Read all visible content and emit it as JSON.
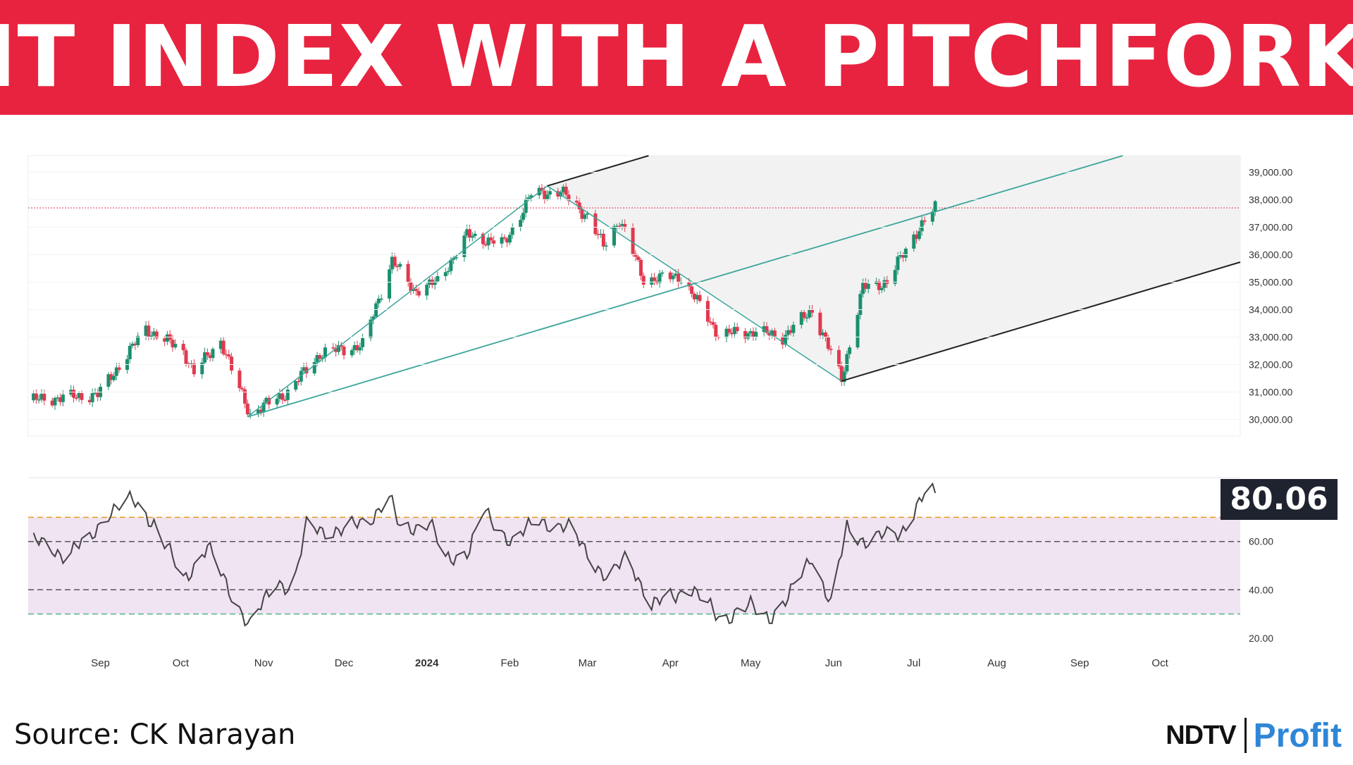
{
  "header": {
    "title": "IT INDEX WITH A PITCHFORK"
  },
  "footer": {
    "source": "Source: CK Narayan"
  },
  "logo": {
    "brand": "NDTV",
    "product": "Profit"
  },
  "colors": {
    "banner": "#e8233f",
    "up": "#1b8f6e",
    "down": "#e0394f",
    "median_line": "#3aa59a",
    "tine_line": "#222222",
    "rsi_line": "#444444",
    "rsi_band": "#f0e3f2",
    "rsi_upper_level": "#e89b19",
    "rsi_lower_level": "#56b58a"
  },
  "chart_data": [
    {
      "type": "candlestick",
      "title": "",
      "x_ticks": [
        "Sep",
        "Oct",
        "Nov",
        "Dec",
        "2024",
        "Feb",
        "Mar",
        "Apr",
        "May",
        "Jun",
        "Jul",
        "Aug",
        "Sep",
        "Oct"
      ],
      "x_range": [
        "2023-08-05",
        "2024-10-31"
      ],
      "y_ticks": [
        "39,000.00",
        "38,000.00",
        "37,000.00",
        "36,000.00",
        "35,000.00",
        "34,000.00",
        "33,000.00",
        "32,000.00",
        "31,000.00",
        "30,000.00"
      ],
      "ylim": [
        29400,
        39600
      ],
      "current_price_line": 37700,
      "anchors": [
        {
          "x": "2023-08-05",
          "y": 30700
        },
        {
          "x": "2023-08-31",
          "y": 30900
        },
        {
          "x": "2023-09-18",
          "y": 33300
        },
        {
          "x": "2023-10-02",
          "y": 32500
        },
        {
          "x": "2023-10-06",
          "y": 31700
        },
        {
          "x": "2023-10-16",
          "y": 32900
        },
        {
          "x": "2023-10-20",
          "y": 31800
        },
        {
          "x": "2023-10-27",
          "y": 30200
        },
        {
          "x": "2023-11-10",
          "y": 31000
        },
        {
          "x": "2023-11-22",
          "y": 32400
        },
        {
          "x": "2023-12-08",
          "y": 32700
        },
        {
          "x": "2023-12-14",
          "y": 34400
        },
        {
          "x": "2023-12-19",
          "y": 35800
        },
        {
          "x": "2023-12-27",
          "y": 34700
        },
        {
          "x": "2024-01-05",
          "y": 35000
        },
        {
          "x": "2024-01-16",
          "y": 36700
        },
        {
          "x": "2024-01-30",
          "y": 36400
        },
        {
          "x": "2024-02-09",
          "y": 38200
        },
        {
          "x": "2024-02-20",
          "y": 38300
        },
        {
          "x": "2024-03-01",
          "y": 37400
        },
        {
          "x": "2024-03-07",
          "y": 36300
        },
        {
          "x": "2024-03-13",
          "y": 37300
        },
        {
          "x": "2024-03-22",
          "y": 35100
        },
        {
          "x": "2024-04-05",
          "y": 35200
        },
        {
          "x": "2024-04-19",
          "y": 33100
        },
        {
          "x": "2024-05-03",
          "y": 33200
        },
        {
          "x": "2024-05-13",
          "y": 33000
        },
        {
          "x": "2024-05-24",
          "y": 34000
        },
        {
          "x": "2024-06-04",
          "y": 31500
        },
        {
          "x": "2024-06-12",
          "y": 34800
        },
        {
          "x": "2024-06-21",
          "y": 35000
        },
        {
          "x": "2024-07-01",
          "y": 36700
        },
        {
          "x": "2024-07-09",
          "y": 37700
        }
      ],
      "pitchfork": {
        "p1": {
          "x": "2023-10-26",
          "y": 30100
        },
        "p2": {
          "x": "2024-02-15",
          "y": 38500
        },
        "p3": {
          "x": "2024-06-04",
          "y": 31400
        }
      }
    },
    {
      "type": "line",
      "title": "",
      "series_value_label": "80.06",
      "y_ticks": [
        "60.00",
        "40.00",
        "20.00"
      ],
      "ylim": [
        15,
        85
      ],
      "levels": [
        70,
        60,
        40,
        30
      ],
      "band": [
        30,
        70
      ],
      "x_range": [
        "2023-08-05",
        "2024-10-31"
      ],
      "anchors": [
        {
          "x": "2023-08-05",
          "y": 61
        },
        {
          "x": "2023-08-18",
          "y": 55
        },
        {
          "x": "2023-08-28",
          "y": 60
        },
        {
          "x": "2023-09-03",
          "y": 72
        },
        {
          "x": "2023-09-13",
          "y": 77
        },
        {
          "x": "2023-09-21",
          "y": 68
        },
        {
          "x": "2023-10-02",
          "y": 44
        },
        {
          "x": "2023-10-11",
          "y": 58
        },
        {
          "x": "2023-10-18",
          "y": 42
        },
        {
          "x": "2023-10-27",
          "y": 25
        },
        {
          "x": "2023-11-06",
          "y": 44
        },
        {
          "x": "2023-11-12",
          "y": 40
        },
        {
          "x": "2023-11-17",
          "y": 66
        },
        {
          "x": "2023-12-01",
          "y": 64
        },
        {
          "x": "2023-12-12",
          "y": 71
        },
        {
          "x": "2023-12-18",
          "y": 78
        },
        {
          "x": "2023-12-22",
          "y": 65
        },
        {
          "x": "2024-01-02",
          "y": 68
        },
        {
          "x": "2024-01-08",
          "y": 52
        },
        {
          "x": "2024-01-17",
          "y": 57
        },
        {
          "x": "2024-01-22",
          "y": 72
        },
        {
          "x": "2024-02-02",
          "y": 60
        },
        {
          "x": "2024-02-12",
          "y": 69
        },
        {
          "x": "2024-02-23",
          "y": 65
        },
        {
          "x": "2024-03-01",
          "y": 56
        },
        {
          "x": "2024-03-09",
          "y": 43
        },
        {
          "x": "2024-03-16",
          "y": 55
        },
        {
          "x": "2024-03-25",
          "y": 33
        },
        {
          "x": "2024-04-08",
          "y": 41
        },
        {
          "x": "2024-04-20",
          "y": 28
        },
        {
          "x": "2024-05-01",
          "y": 33
        },
        {
          "x": "2024-05-08",
          "y": 29
        },
        {
          "x": "2024-05-15",
          "y": 36
        },
        {
          "x": "2024-05-24",
          "y": 55
        },
        {
          "x": "2024-05-31",
          "y": 33
        },
        {
          "x": "2024-06-06",
          "y": 66
        },
        {
          "x": "2024-06-13",
          "y": 60
        },
        {
          "x": "2024-06-26",
          "y": 64
        },
        {
          "x": "2024-07-05",
          "y": 79
        },
        {
          "x": "2024-07-09",
          "y": 80.06
        }
      ]
    }
  ]
}
